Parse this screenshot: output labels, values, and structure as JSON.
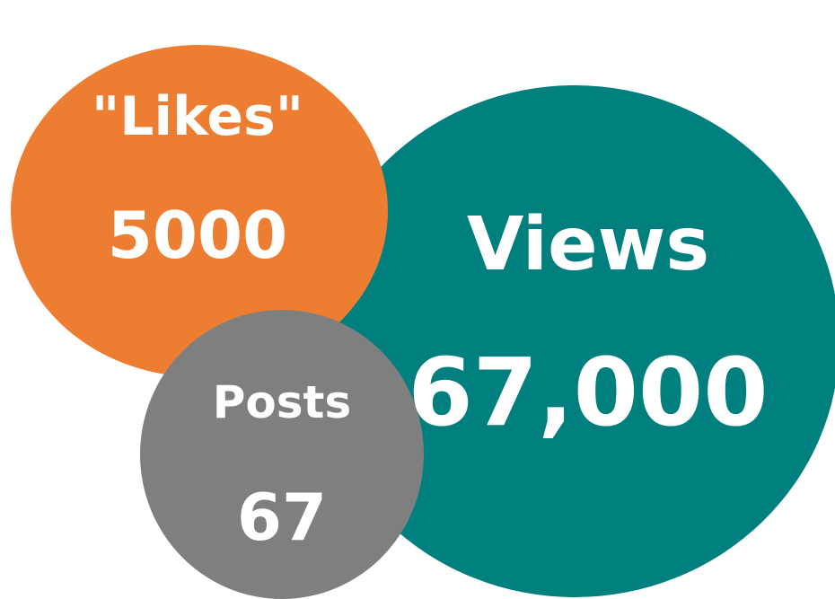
{
  "bubbles": {
    "views": {
      "title": "Views",
      "value": "67,000",
      "color": "#007f7f"
    },
    "likes": {
      "title": "\"Likes\"",
      "value": "5000",
      "color": "#ed7d31"
    },
    "posts": {
      "title": "Posts",
      "value": "67",
      "color": "#7f7f7f"
    }
  }
}
